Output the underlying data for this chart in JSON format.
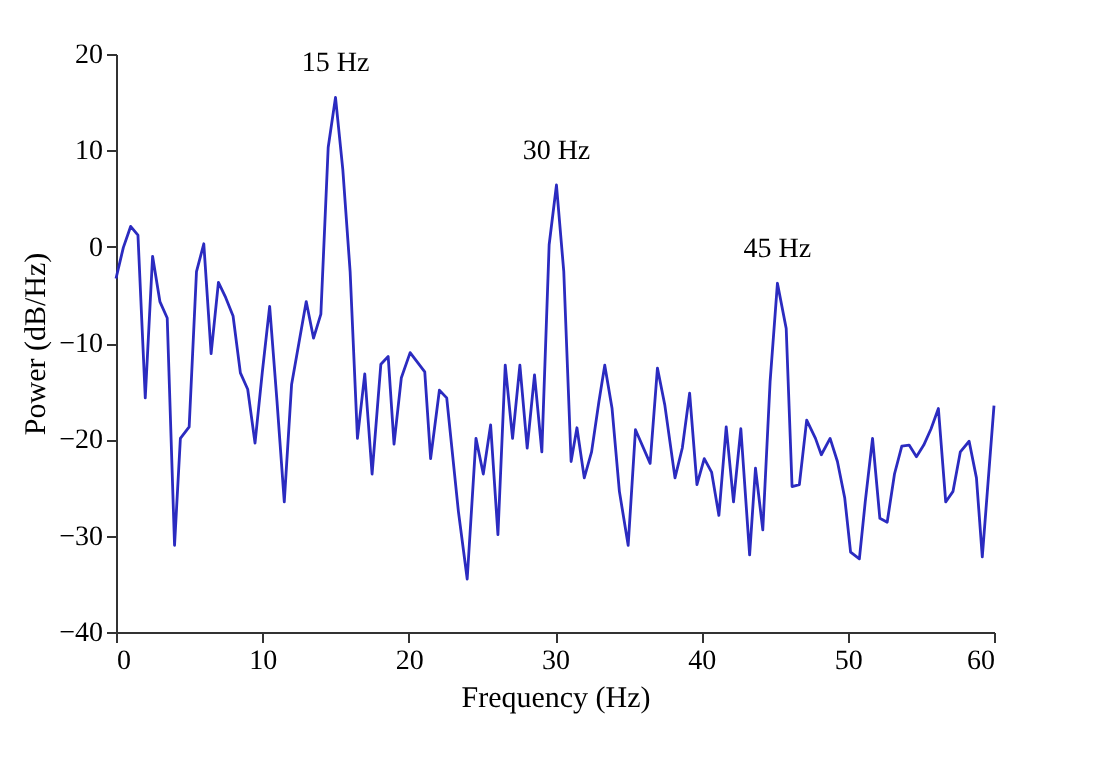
{
  "chart_data": {
    "type": "line",
    "xlabel": "Frequency (Hz)",
    "ylabel": "Power (dB/Hz)",
    "x": [
      0,
      0.5,
      1.0,
      1.5,
      2.0,
      2.5,
      3.0,
      3.5,
      4.0,
      4.4,
      5.0,
      5.5,
      6.0,
      6.5,
      7.0,
      7.5,
      8.0,
      8.5,
      9.0,
      9.5,
      10.0,
      10.5,
      11.0,
      11.5,
      12.0,
      12.5,
      13.0,
      13.5,
      14.0,
      14.5,
      15.0,
      15.5,
      16.0,
      16.5,
      17.0,
      17.5,
      18.1,
      18.6,
      19.0,
      19.5,
      20.1,
      21.1,
      21.5,
      22.1,
      22.6,
      23.4,
      24.0,
      24.6,
      25.1,
      25.6,
      26.1,
      26.6,
      27.1,
      27.6,
      28.1,
      28.6,
      29.1,
      29.6,
      30.1,
      30.6,
      31.1,
      31.5,
      32.0,
      32.5,
      33.0,
      33.4,
      33.9,
      34.4,
      35.0,
      35.5,
      36.5,
      37.0,
      37.5,
      38.2,
      38.7,
      39.2,
      39.7,
      40.2,
      40.7,
      41.2,
      41.7,
      42.2,
      42.7,
      43.3,
      43.7,
      44.2,
      44.7,
      45.2,
      45.8,
      46.2,
      46.7,
      47.2,
      47.8,
      48.2,
      48.8,
      49.3,
      49.8,
      50.2,
      50.8,
      51.2,
      51.7,
      52.2,
      52.7,
      53.2,
      53.7,
      54.2,
      54.7,
      55.2,
      55.7,
      56.2,
      56.7,
      57.2,
      57.7,
      58.3,
      58.8,
      59.2,
      60.0
    ],
    "series": [
      {
        "color": "#2b2bc0",
        "values": [
          -3.3,
          -0.1,
          2.1,
          1.2,
          -15.7,
          -1.0,
          -5.7,
          -7.4,
          -31.0,
          -19.9,
          -18.7,
          -2.6,
          0.3,
          -11.1,
          -3.7,
          -5.3,
          -7.2,
          -13.1,
          -14.8,
          -20.4,
          -13.0,
          -6.2,
          -16.0,
          -26.5,
          -14.3,
          -10.0,
          -5.7,
          -9.5,
          -7.0,
          10.3,
          15.5,
          8.0,
          -2.6,
          -19.9,
          -13.2,
          -23.6,
          -12.2,
          -11.4,
          -20.5,
          -13.6,
          -11.0,
          -13.0,
          -22.0,
          -14.9,
          -15.7,
          -27.5,
          -34.5,
          -19.9,
          -23.6,
          -18.5,
          -29.9,
          -12.3,
          -19.9,
          -12.3,
          -20.9,
          -13.3,
          -21.3,
          0.2,
          6.4,
          -2.6,
          -22.3,
          -18.8,
          -24.0,
          -21.3,
          -16.1,
          -12.3,
          -16.8,
          -25.4,
          -31.0,
          -19.0,
          -22.5,
          -12.6,
          -16.4,
          -24.0,
          -20.9,
          -15.2,
          -24.7,
          -22.0,
          -23.4,
          -27.9,
          -18.7,
          -26.5,
          -18.9,
          -32.0,
          -23.0,
          -29.4,
          -14.0,
          -3.8,
          -8.5,
          -24.9,
          -24.7,
          -18.0,
          -19.9,
          -21.6,
          -19.9,
          -22.3,
          -26.1,
          -31.7,
          -32.4,
          -26.5,
          -19.9,
          -28.2,
          -28.6,
          -23.6,
          -20.7,
          -20.6,
          -21.8,
          -20.6,
          -18.9,
          -16.8,
          -26.5,
          -25.4,
          -21.3,
          -20.2,
          -24.0,
          -32.2,
          -16.5
        ]
      }
    ],
    "annotations": [
      {
        "text": "15 Hz",
        "x": 15,
        "y": 15.5
      },
      {
        "text": "30 Hz",
        "x": 30.1,
        "y": 6.4
      },
      {
        "text": "45 Hz",
        "x": 45.2,
        "y": -3.8
      }
    ],
    "xlim": [
      0,
      60
    ],
    "xticks": [
      0,
      10,
      20,
      30,
      40,
      50,
      60
    ],
    "ylim": [
      -40,
      20
    ],
    "yticks": [
      -40,
      -30,
      -20,
      -10,
      0,
      10,
      20
    ],
    "grid": false,
    "marker": "none",
    "line_style": "solid"
  }
}
